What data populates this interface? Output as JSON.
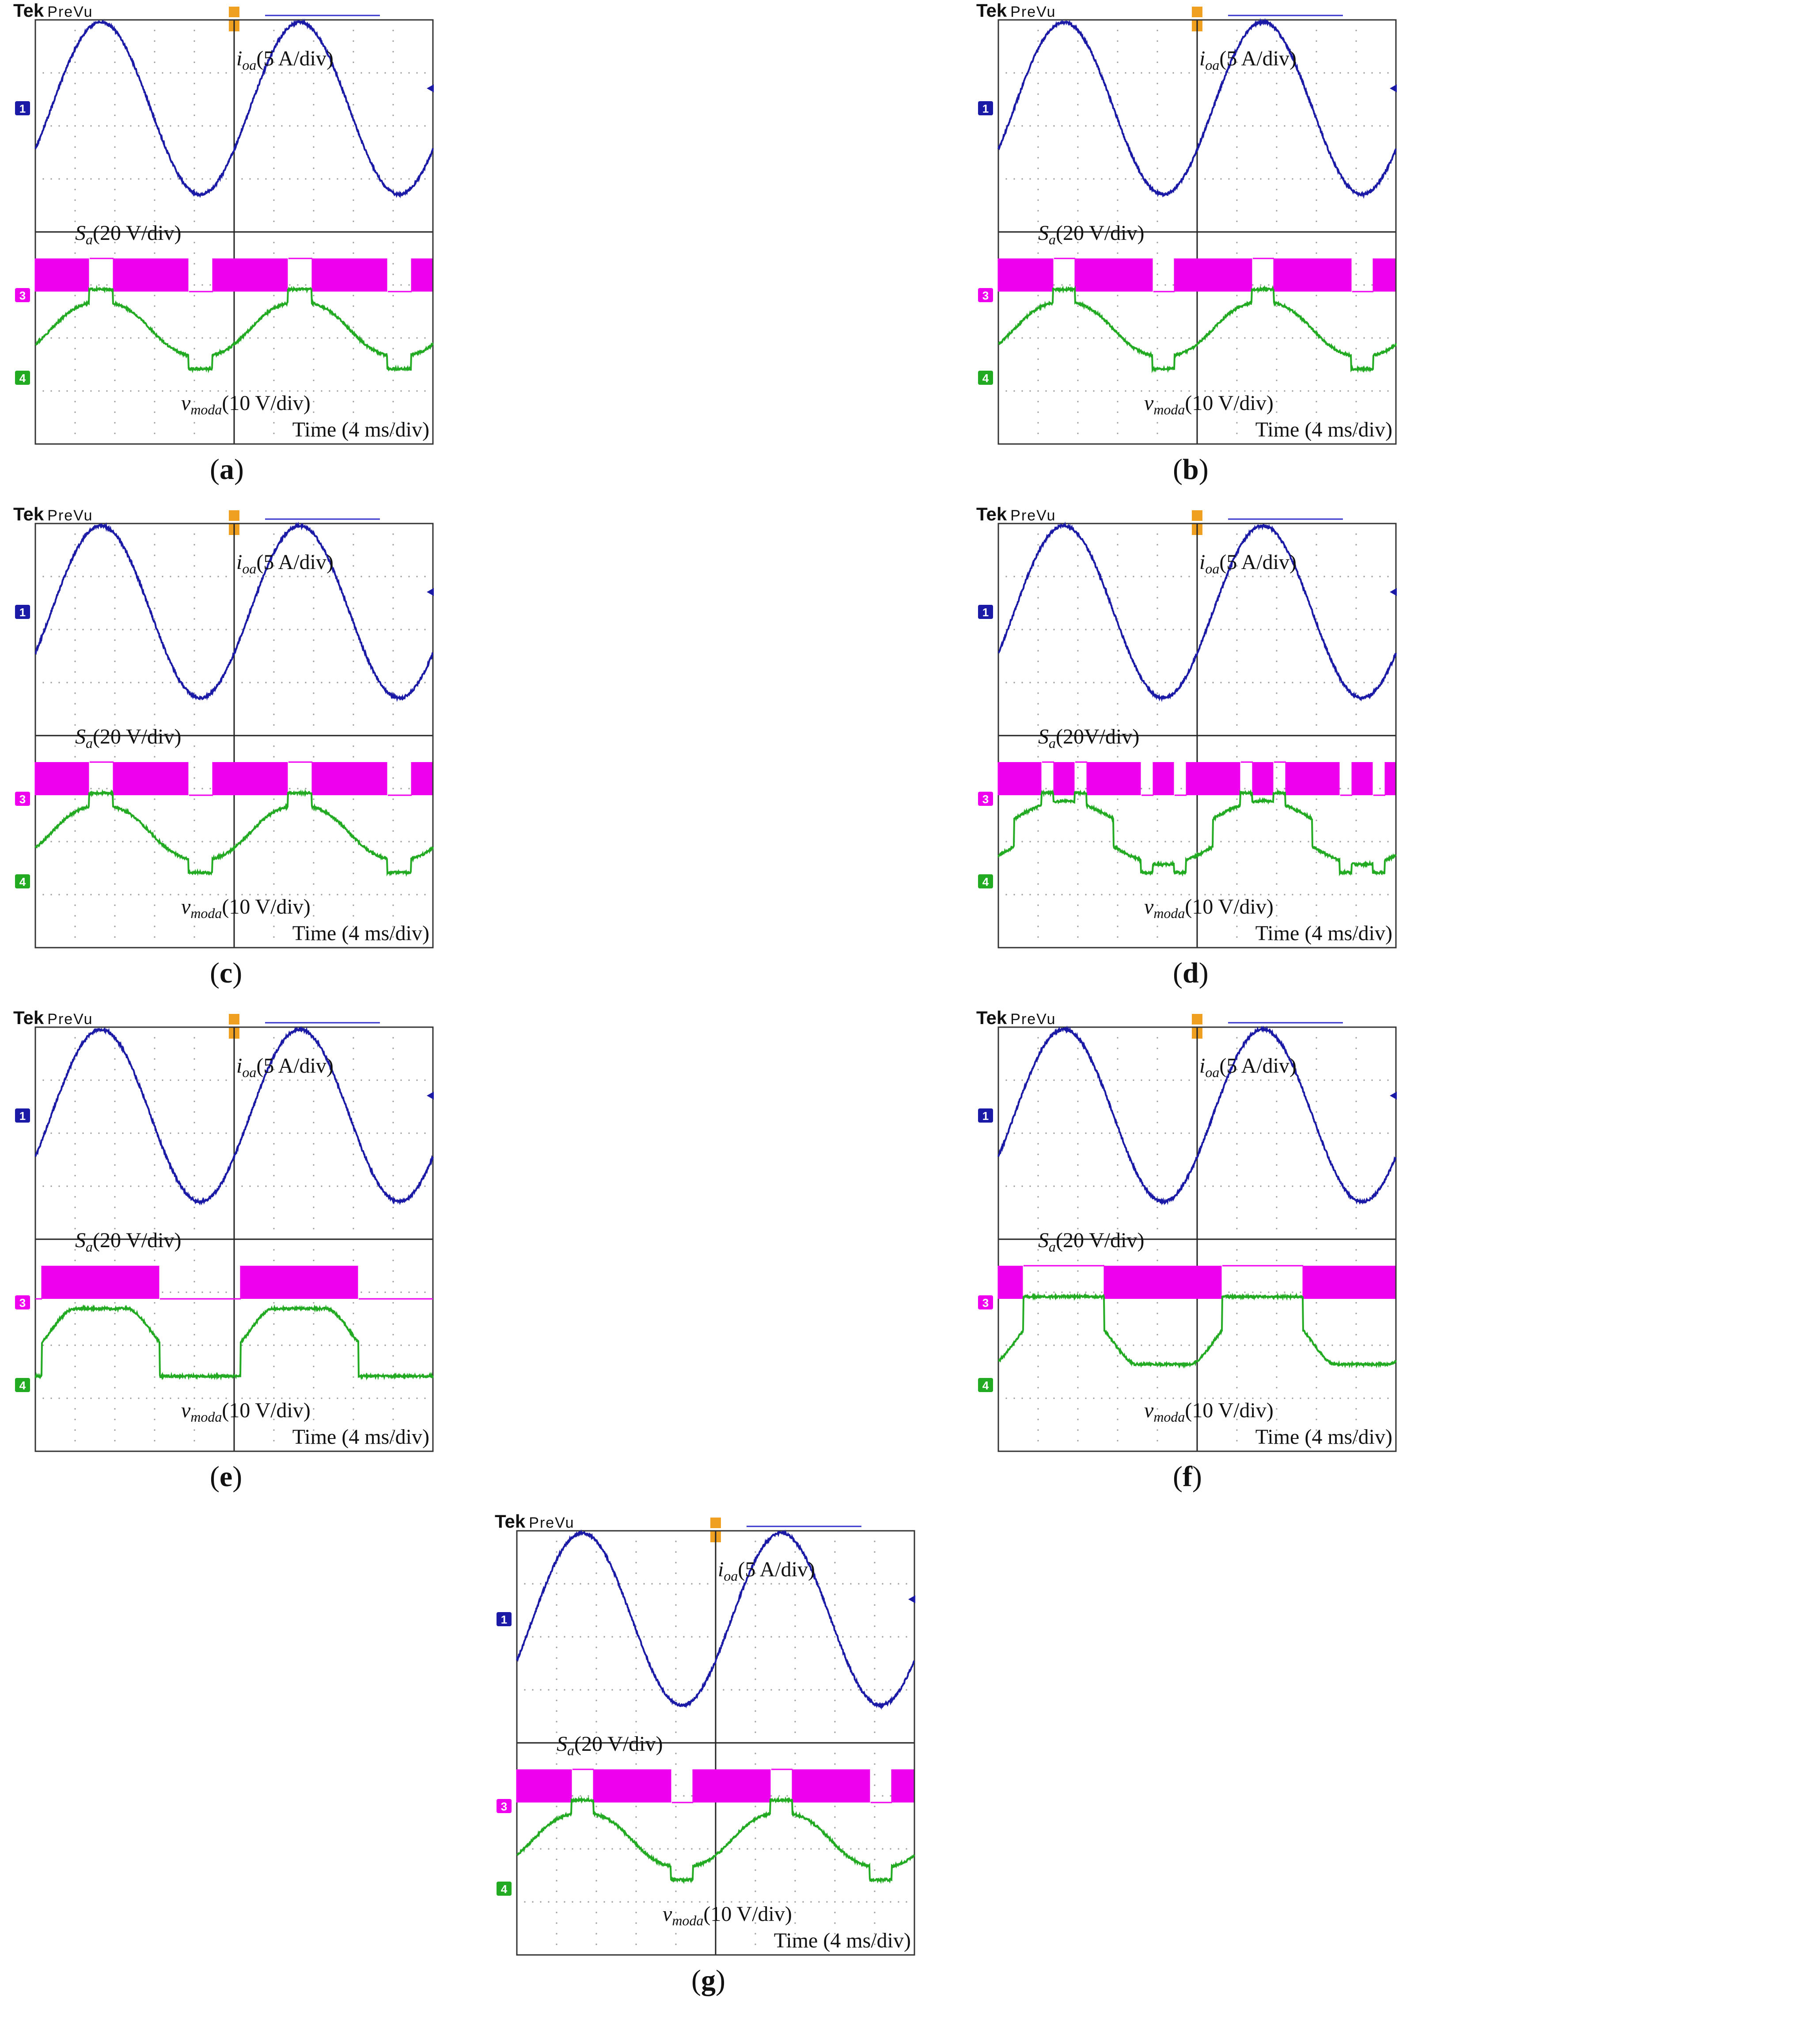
{
  "chart_data": [
    {
      "type": "line",
      "caption": "a",
      "header": {
        "brand": "Tek",
        "mode": "PreVu"
      },
      "labels": {
        "current": "(5 A/div)",
        "switch": "(20 V/div)",
        "voltage": "(10 V/div)",
        "time": "Time (4 ms/div)"
      },
      "channels": [
        "1",
        "3",
        "4"
      ],
      "x_divisions": 10,
      "y_divisions": 8,
      "series": [
        {
          "name": "i_oa",
          "unit": "A",
          "scale_per_div": 5,
          "waveform": "sinusoid",
          "cycles": 2
        },
        {
          "name": "S_a",
          "unit": "V",
          "scale_per_div": 20,
          "waveform": "pwm"
        },
        {
          "name": "v_moda",
          "unit": "V",
          "scale_per_div": 10,
          "waveform": "clamped-modulation",
          "clamp_fraction": 0.12
        }
      ]
    },
    {
      "type": "line",
      "caption": "b",
      "header": {
        "brand": "Tek",
        "mode": "PreVu"
      },
      "labels": {
        "current": "(5 A/div)",
        "switch": "(20 V/div)",
        "voltage": "(10 V/div)",
        "time": "Time (4 ms/div)"
      },
      "channels": [
        "1",
        "3",
        "4"
      ],
      "x_divisions": 10,
      "y_divisions": 8,
      "series": [
        {
          "name": "i_oa",
          "unit": "A",
          "scale_per_div": 5,
          "waveform": "sinusoid",
          "cycles": 2
        },
        {
          "name": "S_a",
          "unit": "V",
          "scale_per_div": 20,
          "waveform": "pwm"
        },
        {
          "name": "v_moda",
          "unit": "V",
          "scale_per_div": 10,
          "waveform": "clamped-modulation",
          "clamp_fraction": 0.11
        }
      ]
    },
    {
      "type": "line",
      "caption": "c",
      "header": {
        "brand": "Tek",
        "mode": "PreVu"
      },
      "labels": {
        "current": "(5 A/div)",
        "switch": "(20 V/div)",
        "voltage": "(10 V/div)",
        "time": "Time (4 ms/div)"
      },
      "channels": [
        "1",
        "3",
        "4"
      ],
      "x_divisions": 10,
      "y_divisions": 8,
      "series": [
        {
          "name": "i_oa",
          "unit": "A",
          "scale_per_div": 5,
          "waveform": "sinusoid",
          "cycles": 2
        },
        {
          "name": "S_a",
          "unit": "V",
          "scale_per_div": 20,
          "waveform": "pwm"
        },
        {
          "name": "v_moda",
          "unit": "V",
          "scale_per_div": 10,
          "waveform": "clamped-modulation",
          "clamp_fraction": 0.12
        }
      ]
    },
    {
      "type": "line",
      "caption": "d",
      "header": {
        "brand": "Tek",
        "mode": "PreVu"
      },
      "labels": {
        "current": "(5 A/div)",
        "switch": "(20V/div)",
        "voltage": "(10 V/div)",
        "time": "Time (4 ms/div)"
      },
      "channels": [
        "1",
        "3",
        "4"
      ],
      "x_divisions": 10,
      "y_divisions": 8,
      "series": [
        {
          "name": "i_oa",
          "unit": "A",
          "scale_per_div": 5,
          "waveform": "sinusoid",
          "cycles": 2
        },
        {
          "name": "S_a",
          "unit": "V",
          "scale_per_div": 20,
          "waveform": "pwm"
        },
        {
          "name": "v_moda",
          "unit": "V",
          "scale_per_div": 10,
          "waveform": "double-clamped",
          "clamp_fraction": 0.06
        }
      ]
    },
    {
      "type": "line",
      "caption": "e",
      "header": {
        "brand": "Tek",
        "mode": "PreVu"
      },
      "labels": {
        "current": "(5 A/div)",
        "switch": "(20 V/div)",
        "voltage": "(10 V/div)",
        "time": "Time (4 ms/div)"
      },
      "channels": [
        "1",
        "3",
        "4"
      ],
      "x_divisions": 10,
      "y_divisions": 8,
      "series": [
        {
          "name": "i_oa",
          "unit": "A",
          "scale_per_div": 5,
          "waveform": "sinusoid",
          "cycles": 2
        },
        {
          "name": "S_a",
          "unit": "V",
          "scale_per_div": 20,
          "waveform": "pwm"
        },
        {
          "name": "v_moda",
          "unit": "V",
          "scale_per_div": 10,
          "waveform": "dpwm-low",
          "clamp_fraction": 0.28
        }
      ]
    },
    {
      "type": "line",
      "caption": "f",
      "header": {
        "brand": "Tek",
        "mode": "PreVu"
      },
      "labels": {
        "current": "(5 A/div)",
        "switch": "(20 V/div)",
        "voltage": "(10 V/div)",
        "time": "Time (4 ms/div)"
      },
      "channels": [
        "1",
        "3",
        "4"
      ],
      "x_divisions": 10,
      "y_divisions": 8,
      "series": [
        {
          "name": "i_oa",
          "unit": "A",
          "scale_per_div": 5,
          "waveform": "sinusoid",
          "cycles": 2
        },
        {
          "name": "S_a",
          "unit": "V",
          "scale_per_div": 20,
          "waveform": "pwm"
        },
        {
          "name": "v_moda",
          "unit": "V",
          "scale_per_div": 10,
          "waveform": "dpwm-high",
          "clamp_fraction": 0.28
        }
      ]
    },
    {
      "type": "line",
      "caption": "g",
      "header": {
        "brand": "Tek",
        "mode": "PreVu"
      },
      "labels": {
        "current": "(5 A/div)",
        "switch": "(20 V/div)",
        "voltage": "(10 V/div)",
        "time": "Time (4 ms/div)"
      },
      "channels": [
        "1",
        "3",
        "4"
      ],
      "x_divisions": 10,
      "y_divisions": 8,
      "series": [
        {
          "name": "i_oa",
          "unit": "A",
          "scale_per_div": 5,
          "waveform": "sinusoid",
          "cycles": 2
        },
        {
          "name": "S_a",
          "unit": "V",
          "scale_per_div": 20,
          "waveform": "pwm"
        },
        {
          "name": "v_moda",
          "unit": "V",
          "scale_per_div": 10,
          "waveform": "clamped-modulation",
          "clamp_fraction": 0.11
        }
      ]
    }
  ],
  "colors": {
    "ch1": "#1a1aa6",
    "ch3": "#ee00ee",
    "ch4": "#22aa22",
    "trigger": "#f0a020",
    "grid": "#999999",
    "frame": "#333333"
  }
}
